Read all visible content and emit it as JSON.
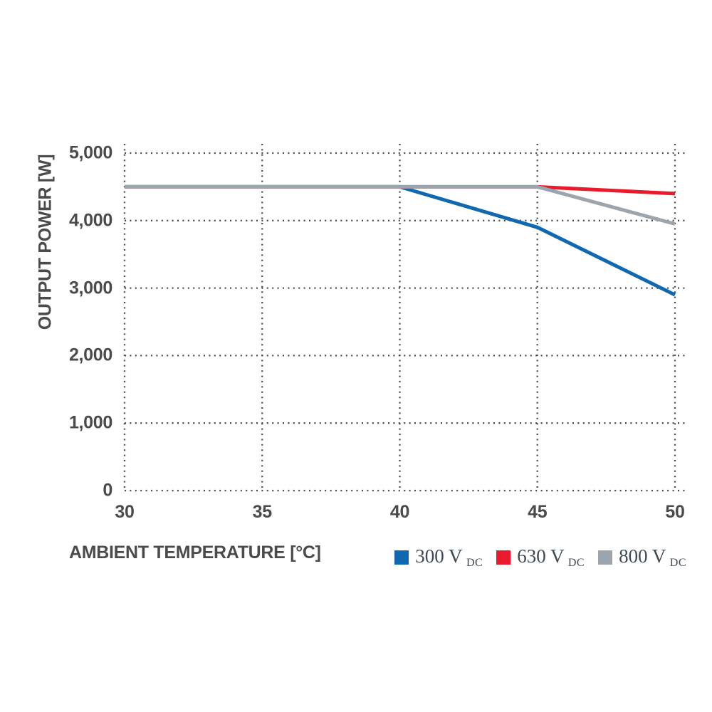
{
  "chart_data": {
    "type": "line",
    "title": "",
    "xlabel": "AMBIENT TEMPERATURE [°C]",
    "ylabel": "OUTPUT POWER [W]",
    "xlim": [
      30,
      50
    ],
    "ylim": [
      0,
      5000
    ],
    "x_ticks": [
      30,
      35,
      40,
      45,
      50
    ],
    "x_tick_labels": [
      "30",
      "35",
      "40",
      "45",
      "50"
    ],
    "y_ticks": [
      0,
      1000,
      2000,
      3000,
      4000,
      5000
    ],
    "y_tick_labels": [
      "0",
      "1,000",
      "2,000",
      "3,000",
      "4,000",
      "5,000"
    ],
    "grid": "dotted",
    "grid_color": "#4b4a4c",
    "legend_position": "bottom-right",
    "series": [
      {
        "name": "300 VDC",
        "legend_label": "300 V",
        "legend_sub": "DC",
        "color": "#1068b1",
        "points": [
          [
            30,
            4500
          ],
          [
            40,
            4500
          ],
          [
            45,
            3900
          ],
          [
            50,
            2900
          ]
        ]
      },
      {
        "name": "630 VDC",
        "legend_label": "630 V",
        "legend_sub": "DC",
        "color": "#e81a2b",
        "points": [
          [
            30,
            4500
          ],
          [
            45,
            4500
          ],
          [
            50,
            4400
          ]
        ]
      },
      {
        "name": "800 VDC",
        "legend_label": "800 V",
        "legend_sub": "DC",
        "color": "#9ba5ad",
        "points": [
          [
            30,
            4500
          ],
          [
            45,
            4500
          ],
          [
            50,
            3950
          ]
        ]
      }
    ],
    "colors": {
      "text": "#4b4a4c",
      "legend_text": "#3d4a56",
      "background": "#ffffff"
    }
  }
}
